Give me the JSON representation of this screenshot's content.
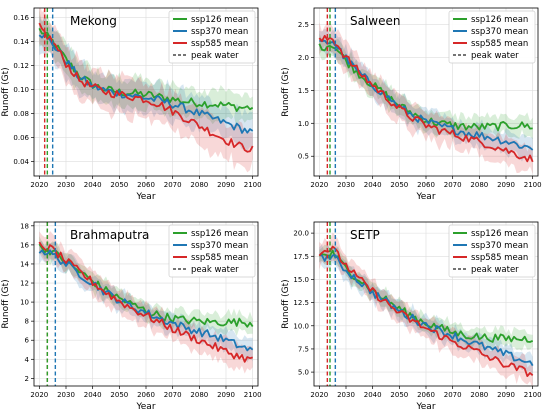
{
  "figure": {
    "colors": {
      "ssp126": "#2ca02c",
      "ssp370": "#1f77b4",
      "ssp585": "#d62728",
      "grid": "#dddddd",
      "legend_border": "#cccccc"
    }
  },
  "chart_data": [
    {
      "type": "line",
      "title": "Mekong",
      "xlabel": "Year",
      "ylabel": "Runoff (Gt)",
      "xlim": [
        2018,
        2102
      ],
      "ylim": [
        0.028,
        0.168
      ],
      "xticks": [
        2020,
        2030,
        2040,
        2050,
        2060,
        2070,
        2080,
        2090,
        2100
      ],
      "yticks": [
        0.04,
        0.06,
        0.08,
        0.1,
        0.12,
        0.14,
        0.16
      ],
      "ytick_labels": [
        "0.04",
        "0.06",
        "0.08",
        "0.10",
        "0.12",
        "0.14",
        "0.16"
      ],
      "grid": true,
      "legend_position": "top-right",
      "legend": [
        "ssp126 mean",
        "ssp370 mean",
        "ssp585 mean",
        "peak water"
      ],
      "peak_water": [
        {
          "series": "ssp585",
          "year": 2022
        },
        {
          "series": "ssp126",
          "year": 2023
        },
        {
          "series": "ssp370",
          "year": 2025
        }
      ],
      "series": [
        {
          "name": "ssp126 mean",
          "key": "ssp126",
          "x": [
            2020,
            2025,
            2030,
            2035,
            2040,
            2045,
            2050,
            2055,
            2060,
            2065,
            2070,
            2075,
            2080,
            2085,
            2090,
            2095,
            2100
          ],
          "values": [
            0.15,
            0.14,
            0.125,
            0.112,
            0.104,
            0.1,
            0.098,
            0.097,
            0.096,
            0.094,
            0.092,
            0.09,
            0.089,
            0.088,
            0.087,
            0.085,
            0.085
          ],
          "band": 0.012
        },
        {
          "name": "ssp370 mean",
          "key": "ssp370",
          "x": [
            2020,
            2025,
            2030,
            2035,
            2040,
            2045,
            2050,
            2055,
            2060,
            2065,
            2070,
            2075,
            2080,
            2085,
            2090,
            2095,
            2100
          ],
          "values": [
            0.148,
            0.138,
            0.124,
            0.11,
            0.103,
            0.099,
            0.097,
            0.095,
            0.093,
            0.091,
            0.088,
            0.084,
            0.08,
            0.076,
            0.072,
            0.068,
            0.064
          ],
          "band": 0.013
        },
        {
          "name": "ssp585 mean",
          "key": "ssp585",
          "x": [
            2020,
            2025,
            2030,
            2035,
            2040,
            2045,
            2050,
            2055,
            2060,
            2065,
            2070,
            2075,
            2080,
            2085,
            2090,
            2095,
            2100
          ],
          "values": [
            0.152,
            0.14,
            0.122,
            0.108,
            0.102,
            0.098,
            0.096,
            0.094,
            0.092,
            0.088,
            0.082,
            0.076,
            0.07,
            0.064,
            0.058,
            0.053,
            0.05
          ],
          "band": 0.015
        }
      ]
    },
    {
      "type": "line",
      "title": "Salween",
      "xlabel": "Year",
      "ylabel": "Runoff (Gt)",
      "xlim": [
        2018,
        2102
      ],
      "ylim": [
        0.2,
        2.75
      ],
      "xticks": [
        2020,
        2030,
        2040,
        2050,
        2060,
        2070,
        2080,
        2090,
        2100
      ],
      "yticks": [
        0.5,
        1.0,
        1.5,
        2.0,
        2.5
      ],
      "ytick_labels": [
        "0.5",
        "1.0",
        "1.5",
        "2.0",
        "2.5"
      ],
      "grid": true,
      "legend_position": "top-right",
      "legend": [
        "ssp126 mean",
        "ssp370 mean",
        "ssp585 mean",
        "peak water"
      ],
      "peak_water": [
        {
          "series": "ssp585",
          "year": 2023
        },
        {
          "series": "ssp126",
          "year": 2024
        },
        {
          "series": "ssp370",
          "year": 2026
        }
      ],
      "series": [
        {
          "name": "ssp126 mean",
          "key": "ssp126",
          "x": [
            2020,
            2025,
            2030,
            2035,
            2040,
            2045,
            2050,
            2055,
            2060,
            2065,
            2070,
            2075,
            2080,
            2085,
            2090,
            2095,
            2100
          ],
          "values": [
            2.15,
            2.2,
            1.95,
            1.75,
            1.58,
            1.43,
            1.27,
            1.15,
            1.05,
            1.0,
            0.97,
            0.95,
            0.94,
            0.95,
            0.96,
            0.97,
            0.95
          ],
          "band": 0.15
        },
        {
          "name": "ssp370 mean",
          "key": "ssp370",
          "x": [
            2020,
            2025,
            2030,
            2035,
            2040,
            2045,
            2050,
            2055,
            2060,
            2065,
            2070,
            2075,
            2080,
            2085,
            2090,
            2095,
            2100
          ],
          "values": [
            2.2,
            2.25,
            1.98,
            1.76,
            1.58,
            1.42,
            1.25,
            1.12,
            1.02,
            0.96,
            0.91,
            0.86,
            0.82,
            0.78,
            0.73,
            0.67,
            0.62
          ],
          "band": 0.17
        },
        {
          "name": "ssp585 mean",
          "key": "ssp585",
          "x": [
            2020,
            2025,
            2030,
            2035,
            2040,
            2045,
            2050,
            2055,
            2060,
            2065,
            2070,
            2075,
            2080,
            2085,
            2090,
            2095,
            2100
          ],
          "values": [
            2.25,
            2.3,
            2.0,
            1.77,
            1.58,
            1.4,
            1.22,
            1.08,
            0.97,
            0.9,
            0.84,
            0.78,
            0.72,
            0.66,
            0.59,
            0.52,
            0.45
          ],
          "band": 0.2
        }
      ]
    },
    {
      "type": "line",
      "title": "Brahmaputra",
      "xlabel": "Year",
      "ylabel": "Runoff (Gt)",
      "xlim": [
        2018,
        2102
      ],
      "ylim": [
        1.2,
        18.4
      ],
      "xticks": [
        2020,
        2030,
        2040,
        2050,
        2060,
        2070,
        2080,
        2090,
        2100
      ],
      "yticks": [
        2,
        4,
        6,
        8,
        10,
        12,
        14,
        16,
        18
      ],
      "ytick_labels": [
        "2",
        "4",
        "6",
        "8",
        "10",
        "12",
        "14",
        "16",
        "18"
      ],
      "grid": true,
      "legend_position": "top-right",
      "legend": [
        "ssp126 mean",
        "ssp370 mean",
        "ssp585 mean",
        "peak water"
      ],
      "peak_water": [
        {
          "series": "ssp585",
          "year": 2023
        },
        {
          "series": "ssp126",
          "year": 2023
        },
        {
          "series": "ssp370",
          "year": 2026
        }
      ],
      "series": [
        {
          "name": "ssp126 mean",
          "key": "ssp126",
          "x": [
            2020,
            2025,
            2030,
            2035,
            2040,
            2045,
            2050,
            2055,
            2060,
            2065,
            2070,
            2075,
            2080,
            2085,
            2090,
            2095,
            2100
          ],
          "values": [
            15.8,
            15.3,
            14.2,
            13.2,
            12.2,
            11.2,
            10.4,
            9.7,
            9.1,
            8.6,
            8.3,
            8.1,
            8.0,
            7.9,
            7.9,
            7.9,
            7.8
          ],
          "band": 0.9
        },
        {
          "name": "ssp370 mean",
          "key": "ssp370",
          "x": [
            2020,
            2025,
            2030,
            2035,
            2040,
            2045,
            2050,
            2055,
            2060,
            2065,
            2070,
            2075,
            2080,
            2085,
            2090,
            2095,
            2100
          ],
          "values": [
            15.5,
            15.0,
            14.0,
            13.0,
            12.0,
            11.0,
            10.2,
            9.5,
            8.9,
            8.3,
            7.8,
            7.3,
            6.9,
            6.5,
            6.0,
            5.4,
            4.9
          ],
          "band": 1.0
        },
        {
          "name": "ssp585 mean",
          "key": "ssp585",
          "x": [
            2020,
            2025,
            2030,
            2035,
            2040,
            2045,
            2050,
            2055,
            2060,
            2065,
            2070,
            2075,
            2080,
            2085,
            2090,
            2095,
            2100
          ],
          "values": [
            16.0,
            15.5,
            14.3,
            13.2,
            12.1,
            11.0,
            10.1,
            9.3,
            8.6,
            7.9,
            7.2,
            6.6,
            6.0,
            5.4,
            4.8,
            4.3,
            3.9
          ],
          "band": 1.2
        }
      ]
    },
    {
      "type": "line",
      "title": "SETP",
      "xlabel": "Year",
      "ylabel": "Runoff (Gt)",
      "xlim": [
        2018,
        2102
      ],
      "ylim": [
        3.5,
        21.2
      ],
      "xticks": [
        2020,
        2030,
        2040,
        2050,
        2060,
        2070,
        2080,
        2090,
        2100
      ],
      "yticks": [
        5.0,
        7.5,
        10.0,
        12.5,
        15.0,
        17.5,
        20.0
      ],
      "ytick_labels": [
        "5.0",
        "7.5",
        "10.0",
        "12.5",
        "15.0",
        "17.5",
        "20.0"
      ],
      "grid": true,
      "legend_position": "top-right",
      "legend": [
        "ssp126 mean",
        "ssp370 mean",
        "ssp585 mean",
        "peak water"
      ],
      "peak_water": [
        {
          "series": "ssp585",
          "year": 2023
        },
        {
          "series": "ssp126",
          "year": 2024
        },
        {
          "series": "ssp370",
          "year": 2026
        }
      ],
      "series": [
        {
          "name": "ssp126 mean",
          "key": "ssp126",
          "x": [
            2020,
            2025,
            2030,
            2035,
            2040,
            2045,
            2050,
            2055,
            2060,
            2065,
            2070,
            2075,
            2080,
            2085,
            2090,
            2095,
            2100
          ],
          "values": [
            17.5,
            17.8,
            16.2,
            15.0,
            13.8,
            12.8,
            11.8,
            11.0,
            10.3,
            9.8,
            9.3,
            9.0,
            8.8,
            8.7,
            8.6,
            8.6,
            8.6
          ],
          "band": 0.9
        },
        {
          "name": "ssp370 mean",
          "key": "ssp370",
          "x": [
            2020,
            2025,
            2030,
            2035,
            2040,
            2045,
            2050,
            2055,
            2060,
            2065,
            2070,
            2075,
            2080,
            2085,
            2090,
            2095,
            2100
          ],
          "values": [
            17.3,
            17.5,
            16.0,
            14.8,
            13.6,
            12.6,
            11.6,
            10.8,
            10.1,
            9.5,
            9.0,
            8.4,
            7.9,
            7.4,
            6.9,
            6.4,
            5.9
          ],
          "band": 1.0
        },
        {
          "name": "ssp585 mean",
          "key": "ssp585",
          "x": [
            2020,
            2025,
            2030,
            2035,
            2040,
            2045,
            2050,
            2055,
            2060,
            2065,
            2070,
            2075,
            2080,
            2085,
            2090,
            2095,
            2100
          ],
          "values": [
            18.0,
            18.3,
            16.5,
            15.0,
            13.7,
            12.5,
            11.4,
            10.5,
            9.7,
            9.0,
            8.3,
            7.7,
            7.1,
            6.4,
            5.8,
            5.3,
            4.8
          ],
          "band": 1.2
        }
      ]
    }
  ]
}
